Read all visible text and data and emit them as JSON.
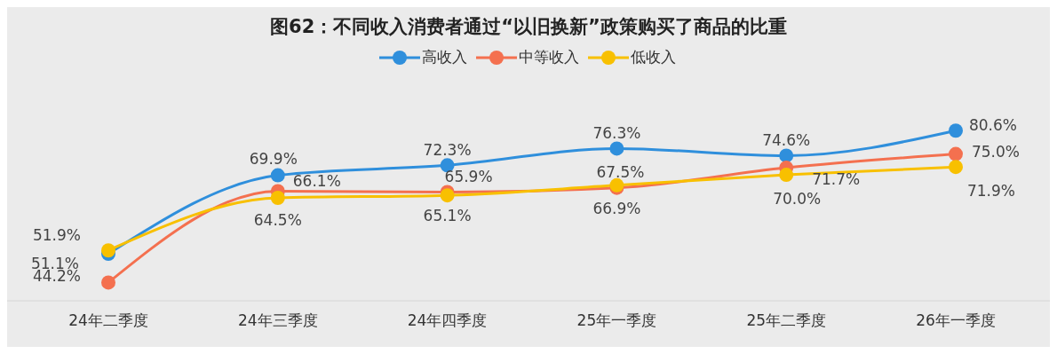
{
  "chart_data": {
    "type": "line",
    "title": "图62：不同收入消费者通过“以旧换新”政策购买了商品的比重",
    "categories": [
      "24年二季度",
      "24年三季度",
      "24年四季度",
      "25年一季度",
      "25年二季度",
      "26年一季度"
    ],
    "series": [
      {
        "name": "高收入",
        "color": "#2f8fdc",
        "values": [
          51.1,
          69.9,
          72.3,
          76.3,
          74.6,
          80.6
        ],
        "value_labels": [
          "51.1%",
          "69.9%",
          "72.3%",
          "76.3%",
          "74.6%",
          "80.6%"
        ]
      },
      {
        "name": "中等收入",
        "color": "#f4704f",
        "values": [
          44.2,
          66.1,
          65.9,
          66.9,
          71.7,
          75.0
        ],
        "value_labels": [
          "44.2%",
          "66.1%",
          "65.9%",
          "66.9%",
          "71.7%",
          "75.0%"
        ]
      },
      {
        "name": "低收入",
        "color": "#f8c000",
        "values": [
          51.9,
          64.5,
          65.1,
          67.5,
          70.0,
          71.9
        ],
        "value_labels": [
          "51.9%",
          "64.5%",
          "65.1%",
          "67.5%",
          "70.0%",
          "71.9%"
        ]
      }
    ],
    "legend": "top",
    "marker": "circle",
    "line_style": "solid",
    "grid": false
  }
}
